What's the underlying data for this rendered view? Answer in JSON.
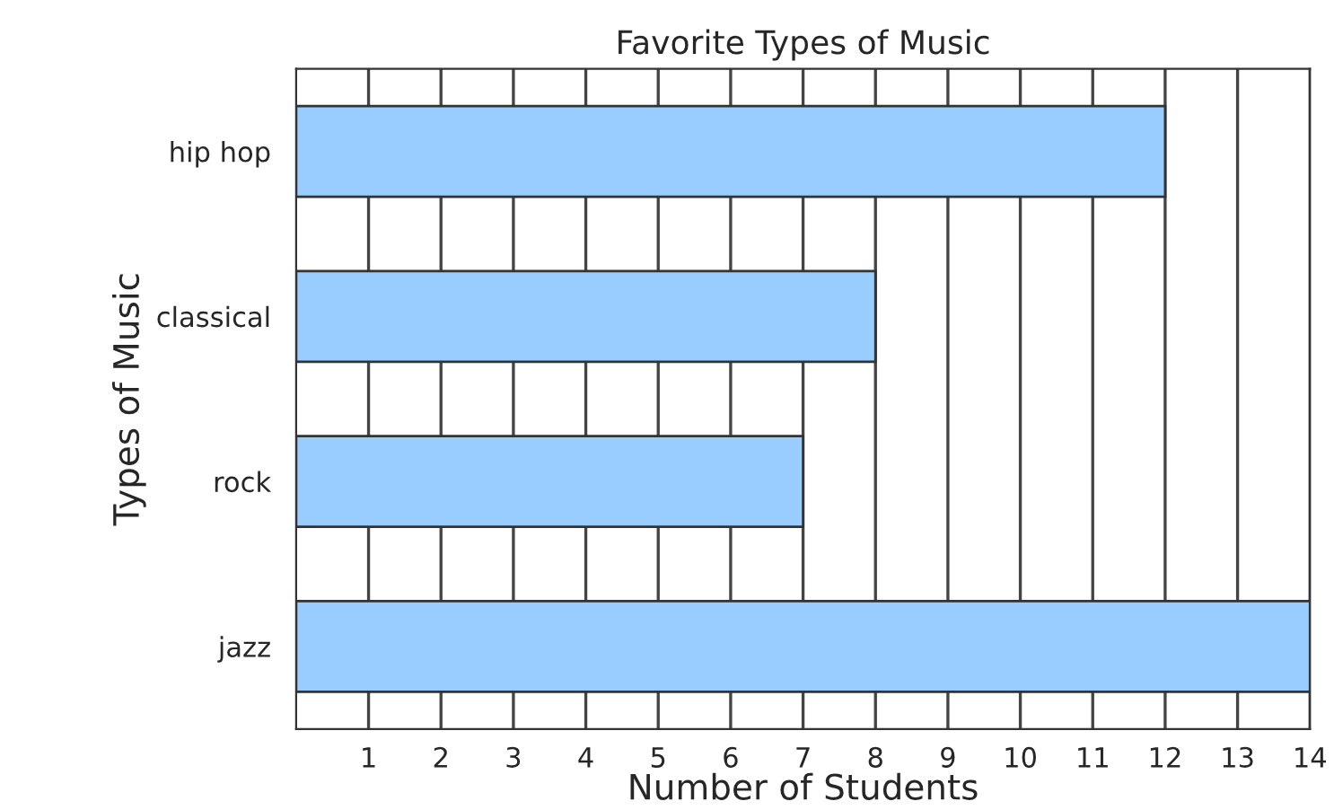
{
  "chart_data": {
    "type": "bar",
    "orientation": "horizontal",
    "title": "Favorite Types of Music",
    "xlabel": "Number of Students",
    "ylabel": "Types of Music",
    "categories": [
      "hip hop",
      "classical",
      "rock",
      "jazz"
    ],
    "values": [
      12,
      8,
      7,
      14
    ],
    "color": "#99ccff",
    "xlim": [
      0,
      14
    ],
    "xticks": [
      1,
      2,
      3,
      4,
      5,
      6,
      7,
      8,
      9,
      10,
      11,
      12,
      13,
      14
    ],
    "grid": "x"
  }
}
